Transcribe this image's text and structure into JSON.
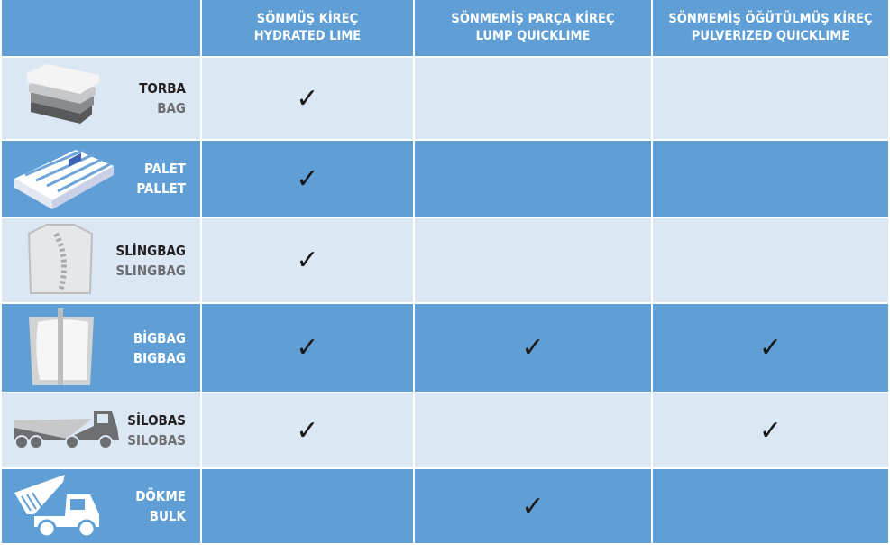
{
  "colors": {
    "header": "#5f9fd6",
    "row_dark": "#5f9fd6",
    "row_light": "#dce7f4"
  },
  "columns": [
    {
      "tr": "SÖNMÜŞ KİREÇ",
      "en": "HYDRATED LIME"
    },
    {
      "tr": "SÖNMEMİŞ PARÇA KİREÇ",
      "en": "LUMP QUICKLIME"
    },
    {
      "tr": "SÖNMEMİŞ ÖĞÜTÜLMÜŞ KİREÇ",
      "en": "PULVERIZED QUICKLIME"
    }
  ],
  "rows": [
    {
      "tr": "TORBA",
      "en": "BAG",
      "icon": "bag-stack-icon",
      "checks": [
        "✓",
        "",
        ""
      ]
    },
    {
      "tr": "PALET",
      "en": "PALLET",
      "icon": "pallet-icon",
      "checks": [
        "✓",
        "",
        ""
      ]
    },
    {
      "tr": "SLİNGBAG",
      "en": "SLINGBAG",
      "icon": "slingbag-icon",
      "checks": [
        "✓",
        "",
        ""
      ]
    },
    {
      "tr": "BİGBAG",
      "en": "BIGBAG",
      "icon": "bigbag-icon",
      "checks": [
        "✓",
        "✓",
        "✓"
      ]
    },
    {
      "tr": "SİLOBAS",
      "en": "SILOBAS",
      "icon": "silo-truck-icon",
      "checks": [
        "✓",
        "",
        "✓"
      ]
    },
    {
      "tr": "DÖKME",
      "en": "BULK",
      "icon": "dump-truck-icon",
      "checks": [
        "",
        "✓",
        ""
      ]
    }
  ]
}
